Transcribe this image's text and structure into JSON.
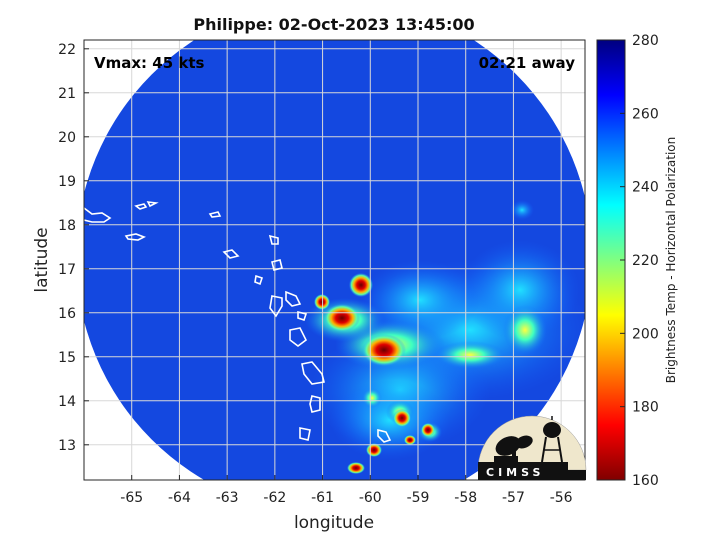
{
  "title": "Philippe: 02-Oct-2023 13:45:00",
  "vmax_label": "Vmax: 45 kts",
  "time_away_label": "02:21 away",
  "x_axis": {
    "label": "longitude",
    "range": [
      -66,
      -55.5
    ],
    "ticks": [
      -65,
      -64,
      -63,
      -62,
      -61,
      -60,
      -59,
      -58,
      -57,
      -56
    ]
  },
  "y_axis": {
    "label": "latitude",
    "range": [
      12.2,
      22.2
    ],
    "ticks": [
      13,
      14,
      15,
      16,
      17,
      18,
      19,
      20,
      21,
      22
    ]
  },
  "colorbar": {
    "label": "Brightness Temp - Horizontal Polarization",
    "range": [
      160,
      280
    ],
    "ticks": [
      160,
      180,
      200,
      220,
      240,
      260,
      280
    ],
    "colormap": "jet"
  },
  "logo": {
    "text": "CIMSS",
    "icon": "satellite-dish-water-tower-icon"
  },
  "colors": {
    "background_field": "#1448e0",
    "grid": "#d8d8d8",
    "land_outline": "#ffffff"
  }
}
